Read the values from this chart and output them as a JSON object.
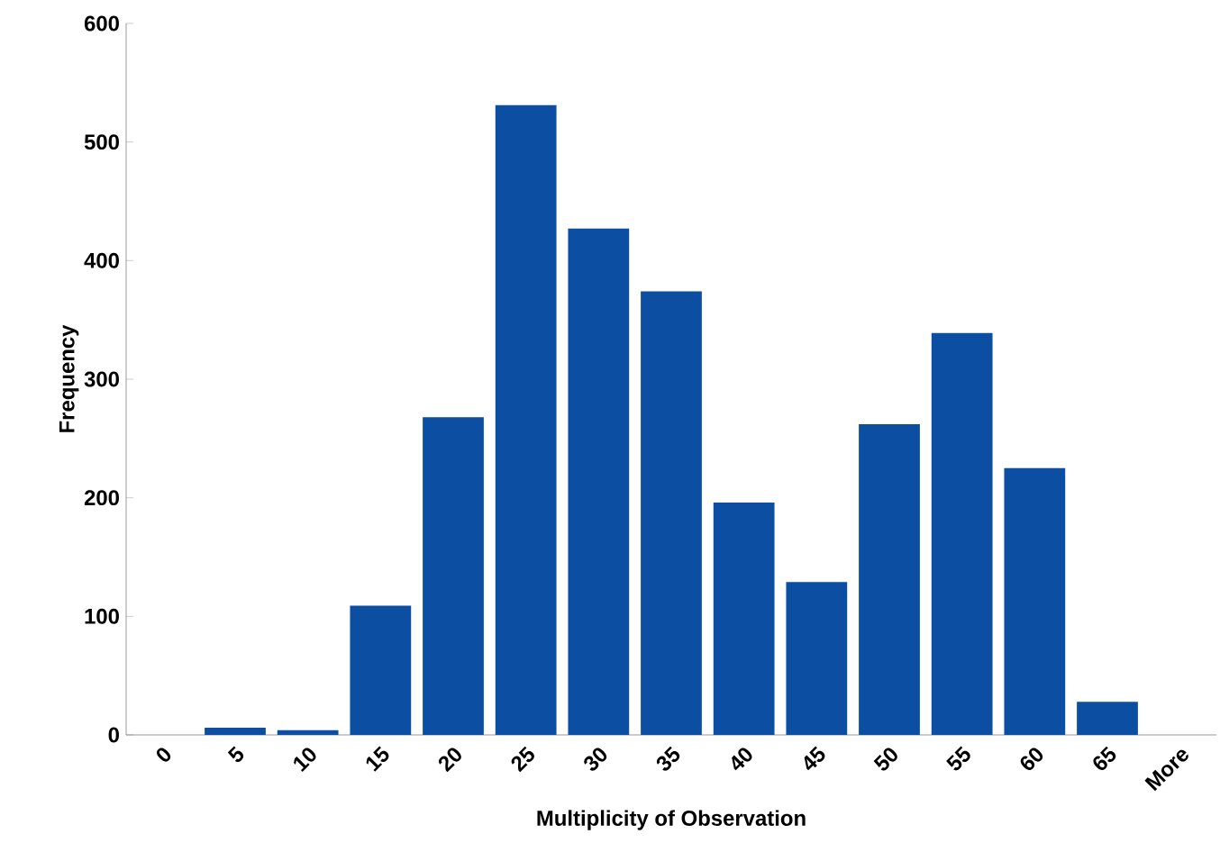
{
  "chart_data": {
    "type": "bar",
    "xlabel": "Multiplicity of Observation",
    "ylabel": "Frequency",
    "categories": [
      "0",
      "5",
      "10",
      "15",
      "20",
      "25",
      "30",
      "35",
      "40",
      "45",
      "50",
      "55",
      "60",
      "65",
      "More"
    ],
    "values": [
      0,
      6,
      4,
      109,
      268,
      531,
      427,
      374,
      196,
      129,
      262,
      339,
      225,
      28,
      0
    ],
    "color": "#0b4ea2",
    "ylim": [
      0,
      600
    ],
    "yticks": [
      0,
      100,
      200,
      300,
      400,
      500,
      600
    ],
    "grid": false
  }
}
